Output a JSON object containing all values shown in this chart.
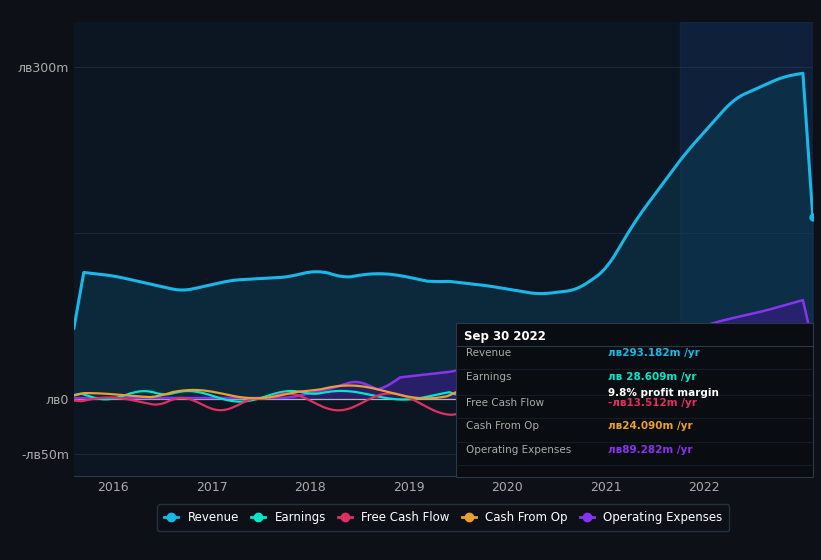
{
  "bg_color": "#0d1117",
  "chart_bg": "#0b1622",
  "highlight_bg": "#1a2a3a",
  "ylabel_300": "лв300m",
  "ylabel_0": "лв0",
  "ylabel_neg50": "-лв50m",
  "xlim": [
    2015.6,
    2023.1
  ],
  "ylim": [
    -70,
    340
  ],
  "xticks": [
    2016,
    2017,
    2018,
    2019,
    2020,
    2021,
    2022
  ],
  "highlight_x_start": 2021.75,
  "highlight_x_end": 2023.1,
  "revenue_color": "#1ab8e8",
  "revenue_fill_color": "#0d3a52",
  "earnings_color": "#00e8cc",
  "fcf_color": "#e03060",
  "cashop_color": "#e8a030",
  "opex_color": "#8833ee",
  "opex_fill_color": "#3a1a88",
  "legend_items": [
    "Revenue",
    "Earnings",
    "Free Cash Flow",
    "Cash From Op",
    "Operating Expenses"
  ],
  "legend_colors": [
    "#1ab8e8",
    "#00e8cc",
    "#e03060",
    "#e8a030",
    "#8833ee"
  ],
  "info_box": {
    "title": "Sep 30 2022",
    "revenue_label": "Revenue",
    "revenue_value": "лв293.182m /yr",
    "revenue_color": "#1ab8e8",
    "earnings_label": "Earnings",
    "earnings_value": "лв 28.609m /yr",
    "earnings_color": "#00e8cc",
    "margin_value": "9.8% profit margin",
    "margin_color": "#ffffff",
    "fcf_label": "Free Cash Flow",
    "fcf_value": "-лв13.512m /yr",
    "fcf_color": "#e03060",
    "cashop_label": "Cash From Op",
    "cashop_value": "лв24.090m /yr",
    "cashop_color": "#e8a030",
    "opex_label": "Operating Expenses",
    "opex_value": "лв89.282m /yr",
    "opex_color": "#8833ee"
  }
}
